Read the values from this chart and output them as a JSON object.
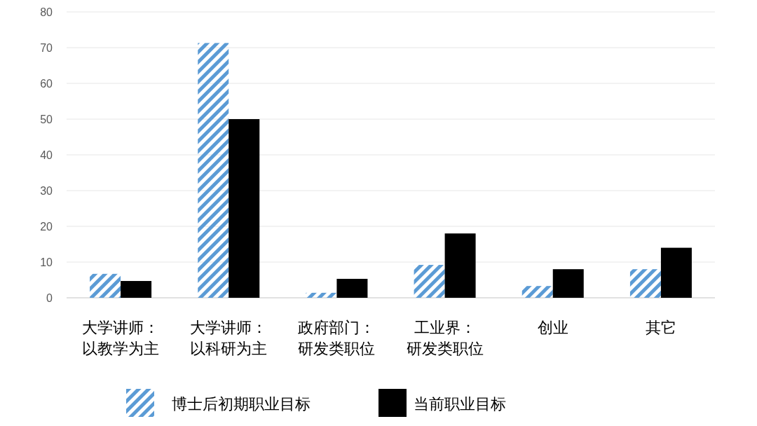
{
  "chart_data": {
    "type": "bar",
    "categories": [
      "大学讲师：以教学为主",
      "大学讲师：以科研为主",
      "政府部门：研发类职位",
      "工业界：研发类职位",
      "创业",
      "其它"
    ],
    "series": [
      {
        "name": "博士后初期职业目标",
        "color": "#5b9bd5",
        "values": [
          6.7,
          71.3,
          1.4,
          9.2,
          3.3,
          8
        ]
      },
      {
        "name": "当前职业目标",
        "color": "#000000",
        "values": [
          4.7,
          50,
          5.3,
          18,
          8,
          14
        ]
      }
    ],
    "ylim": [
      0,
      80
    ],
    "yticks": [
      0,
      10,
      20,
      30,
      40,
      50,
      60,
      70,
      80
    ],
    "grid": "y",
    "legend": "bottom"
  }
}
